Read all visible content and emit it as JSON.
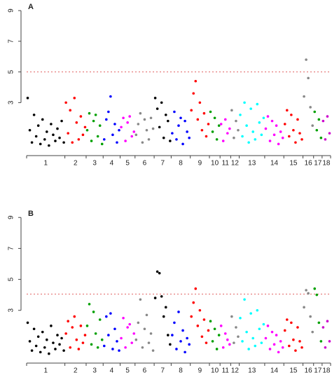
{
  "chart_data": [
    {
      "type": "scatter",
      "title": "A",
      "ylim": [
        0,
        9.6
      ],
      "yticks": [
        3,
        5,
        7,
        9
      ],
      "threshold": 5,
      "threshold_color": "#e06060",
      "series": [
        {
          "name": "1",
          "color": "#000000",
          "values": [
            3.3,
            1.2,
            0.4,
            2.2,
            0.8,
            1.5,
            0.3,
            1.9,
            0.6,
            1.1,
            0.2,
            1.6,
            0.9,
            0.5,
            1.3,
            0.7,
            1.8,
            0.4
          ]
        },
        {
          "name": "2",
          "color": "#ff0000",
          "values": [
            3.0,
            1.0,
            2.5,
            0.4,
            3.3,
            1.7,
            0.6,
            2.1,
            0.9,
            1.4
          ]
        },
        {
          "name": "3",
          "color": "#00a000",
          "values": [
            1.2,
            2.3,
            0.5,
            1.8,
            2.2,
            0.8,
            1.5,
            0.3
          ]
        },
        {
          "name": "4",
          "color": "#0000ff",
          "values": [
            0.6,
            1.9,
            2.4,
            3.4,
            0.9,
            1.6,
            0.4,
            1.2
          ]
        },
        {
          "name": "5",
          "color": "#ff00ff",
          "values": [
            1.4,
            2.0,
            0.5,
            1.7,
            2.1,
            0.8,
            1.1
          ]
        },
        {
          "name": "6",
          "color": "#888888",
          "values": [
            0.9,
            1.6,
            2.3,
            0.4,
            1.9,
            1.2,
            0.6,
            2.0,
            1.3
          ]
        },
        {
          "name": "7",
          "color": "#000000",
          "values": [
            3.3,
            2.6,
            1.4,
            3.0,
            0.7,
            2.2,
            1.8,
            0.5
          ]
        },
        {
          "name": "8",
          "color": "#0000ff",
          "values": [
            1.0,
            2.4,
            0.6,
            1.5,
            2.0,
            0.3,
            1.8,
            1.1,
            0.7
          ]
        },
        {
          "name": "9",
          "color": "#ff0000",
          "values": [
            2.5,
            3.6,
            4.4,
            1.9,
            3.0,
            1.2,
            2.3,
            0.8,
            1.6
          ]
        },
        {
          "name": "10",
          "color": "#00a000",
          "values": [
            2.4,
            1.1,
            2.0,
            0.6,
            1.5
          ]
        },
        {
          "name": "11",
          "color": "#ff00ff",
          "values": [
            1.6,
            0.5,
            1.9,
            1.0,
            1.3
          ]
        },
        {
          "name": "12",
          "color": "#888888",
          "values": [
            2.5,
            0.7,
            1.8,
            1.2
          ]
        },
        {
          "name": "13",
          "color": "#00ffff",
          "values": [
            2.2,
            0.8,
            3.0,
            1.5,
            0.4,
            2.6,
            1.1,
            0.6,
            2.9,
            1.7,
            0.9,
            2.0
          ]
        },
        {
          "name": "14",
          "color": "#ff00ff",
          "values": [
            1.3,
            2.1,
            0.5,
            1.8,
            0.9,
            1.5,
            0.3,
            1.1,
            0.7
          ]
        },
        {
          "name": "15",
          "color": "#ff0000",
          "values": [
            1.6,
            2.5,
            0.8,
            2.2,
            1.2,
            0.4,
            1.9,
            1.0,
            0.6
          ]
        },
        {
          "name": "16",
          "color": "#888888",
          "values": [
            3.4,
            5.8,
            4.6,
            2.7,
            1.5
          ]
        },
        {
          "name": "17",
          "color": "#00a000",
          "values": [
            2.4,
            1.2,
            1.9,
            0.7
          ]
        },
        {
          "name": "18",
          "color": "#cc00cc",
          "values": [
            1.8,
            0.6,
            2.1,
            1.0
          ]
        }
      ]
    },
    {
      "type": "scatter",
      "title": "B",
      "ylim": [
        0,
        9.6
      ],
      "yticks": [
        3,
        5,
        7,
        9
      ],
      "threshold": 4.05,
      "threshold_color": "#e06060",
      "series": [
        {
          "name": "1",
          "color": "#000000",
          "values": [
            2.2,
            1.0,
            0.4,
            1.8,
            0.7,
            1.3,
            0.3,
            1.6,
            0.6,
            1.1,
            0.2,
            2.0,
            0.9,
            0.5,
            1.4,
            0.8,
            1.2,
            0.4
          ]
        },
        {
          "name": "2",
          "color": "#ff0000",
          "values": [
            1.5,
            2.3,
            0.6,
            1.9,
            2.6,
            1.1,
            0.5,
            2.0,
            0.9,
            1.4
          ]
        },
        {
          "name": "3",
          "color": "#00a000",
          "values": [
            2.0,
            3.4,
            0.8,
            2.9,
            1.5,
            0.6,
            2.4,
            1.1
          ]
        },
        {
          "name": "4",
          "color": "#0000ff",
          "values": [
            0.7,
            2.6,
            1.4,
            2.8,
            0.5,
            1.8,
            1.0,
            0.4
          ]
        },
        {
          "name": "5",
          "color": "#ff00ff",
          "values": [
            1.2,
            2.5,
            0.6,
            1.9,
            2.1,
            0.9,
            1.5
          ]
        },
        {
          "name": "6",
          "color": "#888888",
          "values": [
            1.1,
            2.2,
            3.7,
            0.6,
            1.8,
            2.7,
            0.9,
            1.5,
            0.4
          ]
        },
        {
          "name": "7",
          "color": "#000000",
          "values": [
            3.8,
            5.5,
            5.4,
            3.9,
            2.6,
            3.2,
            1.4,
            0.8
          ]
        },
        {
          "name": "8",
          "color": "#0000ff",
          "values": [
            1.4,
            2.2,
            0.5,
            2.9,
            1.0,
            1.7,
            0.3,
            1.2,
            0.8
          ]
        },
        {
          "name": "9",
          "color": "#ff0000",
          "values": [
            2.6,
            3.5,
            4.4,
            2.0,
            3.0,
            1.3,
            2.4,
            0.9,
            1.7
          ]
        },
        {
          "name": "10",
          "color": "#00a000",
          "values": [
            2.3,
            1.0,
            1.8,
            0.5,
            1.4
          ]
        },
        {
          "name": "11",
          "color": "#ff00ff",
          "values": [
            2.0,
            0.6,
            1.5,
            1.1,
            0.8
          ]
        },
        {
          "name": "12",
          "color": "#888888",
          "values": [
            2.6,
            0.9,
            1.9,
            1.3
          ]
        },
        {
          "name": "13",
          "color": "#00ffff",
          "values": [
            2.5,
            1.0,
            3.7,
            1.6,
            0.5,
            2.8,
            1.2,
            0.7,
            3.0,
            1.8,
            0.9,
            2.1
          ]
        },
        {
          "name": "14",
          "color": "#ff00ff",
          "values": [
            1.2,
            2.0,
            0.5,
            1.6,
            0.8,
            1.4,
            0.3,
            1.0,
            0.6
          ]
        },
        {
          "name": "15",
          "color": "#ff0000",
          "values": [
            1.7,
            2.4,
            0.7,
            2.2,
            1.1,
            0.4,
            1.9,
            1.0,
            0.6
          ]
        },
        {
          "name": "16",
          "color": "#888888",
          "values": [
            3.2,
            4.3,
            4.1,
            2.6,
            1.6
          ]
        },
        {
          "name": "17",
          "color": "#00a000",
          "values": [
            4.4,
            4.0,
            2.2,
            1.0
          ]
        },
        {
          "name": "18",
          "color": "#cc00cc",
          "values": [
            1.9,
            0.6,
            2.3,
            1.0
          ]
        }
      ]
    }
  ]
}
